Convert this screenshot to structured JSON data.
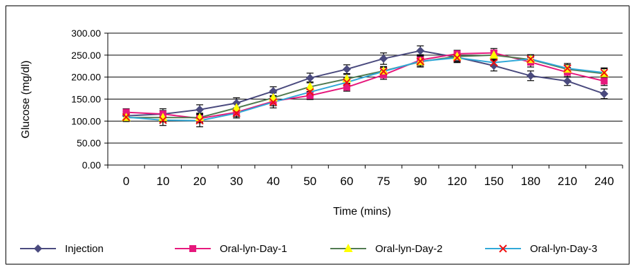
{
  "chart_data": {
    "type": "line",
    "title": "",
    "xlabel": "Time (mins)",
    "ylabel": "Glucose (mg/dl)",
    "ylim": [
      0,
      300
    ],
    "yticks": [
      "0.00",
      "50.00",
      "100.00",
      "150.00",
      "200.00",
      "250.00",
      "300.00"
    ],
    "ytick_values": [
      0,
      50,
      100,
      150,
      200,
      250,
      300
    ],
    "categories": [
      "0",
      "10",
      "20",
      "30",
      "40",
      "50",
      "60",
      "75",
      "90",
      "120",
      "150",
      "180",
      "210",
      "240"
    ],
    "grid": true,
    "legend_position": "bottom",
    "error_bars": true,
    "series": [
      {
        "name": "Injection",
        "color": "#4a4a7e",
        "marker": "diamond",
        "values": [
          112,
          116,
          126,
          141,
          168,
          198,
          218,
          242,
          260,
          245,
          226,
          203,
          191,
          162
        ],
        "errors": [
          10,
          12,
          11,
          12,
          10,
          11,
          10,
          13,
          11,
          12,
          12,
          11,
          10,
          11
        ]
      },
      {
        "name": "Oral-lyn-Day-1",
        "color": "#e6187c",
        "marker": "square",
        "values": [
          120,
          116,
          106,
          120,
          145,
          158,
          177,
          205,
          239,
          253,
          255,
          234,
          211,
          191
        ],
        "errors": [
          8,
          8,
          10,
          10,
          10,
          9,
          9,
          10,
          12,
          8,
          10,
          11,
          11,
          10
        ]
      },
      {
        "name": "Oral-lyn-Day-2",
        "color": "#507a50",
        "marker": "triangle",
        "values": [
          108,
          108,
          108,
          130,
          153,
          178,
          196,
          214,
          235,
          247,
          250,
          240,
          218,
          208
        ],
        "errors": [
          9,
          10,
          10,
          11,
          11,
          11,
          10,
          10,
          12,
          10,
          10,
          10,
          10,
          11
        ]
      },
      {
        "name": "Oral-lyn-Day-3",
        "color": "#30a8d8",
        "marker": "x",
        "values": [
          109,
          102,
          101,
          118,
          143,
          166,
          188,
          213,
          236,
          244,
          233,
          241,
          220,
          210
        ],
        "errors": [
          9,
          12,
          14,
          11,
          13,
          10,
          10,
          9,
          12,
          9,
          9,
          10,
          11,
          11
        ]
      }
    ]
  }
}
